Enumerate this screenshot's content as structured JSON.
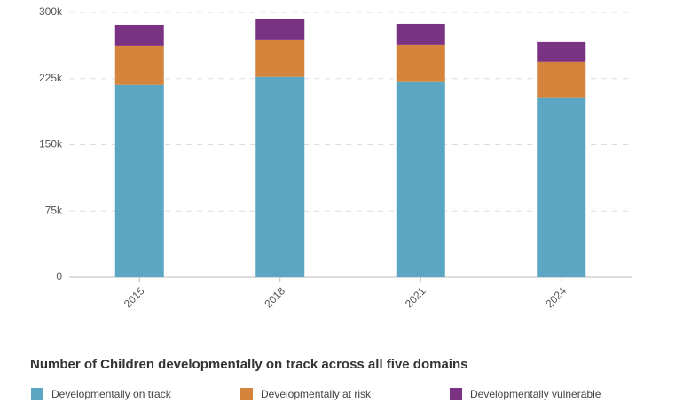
{
  "chart_data": {
    "type": "stacked_bar",
    "title": "Number of Children developmentally on track across all five domains",
    "categories": [
      "2015",
      "2018",
      "2021",
      "2024"
    ],
    "series": [
      {
        "name": "Developmentally on track",
        "color": "#5ba6c2",
        "values": [
          218000,
          227000,
          221000,
          203000
        ]
      },
      {
        "name": "Developmentally at risk",
        "color": "#d4843b",
        "values": [
          44000,
          42000,
          42000,
          41000
        ]
      },
      {
        "name": "Developmentally vulnerable",
        "color": "#7a3383",
        "values": [
          24000,
          24000,
          24000,
          23000
        ]
      }
    ],
    "ylim": [
      0,
      300000
    ],
    "yticks": [
      0,
      {
        "value": 75000,
        "label": "75k"
      },
      {
        "value": 150000,
        "label": "150k"
      },
      {
        "value": 225000,
        "label": "225k"
      },
      {
        "value": 300000,
        "label": "300k"
      }
    ],
    "grid": true
  }
}
